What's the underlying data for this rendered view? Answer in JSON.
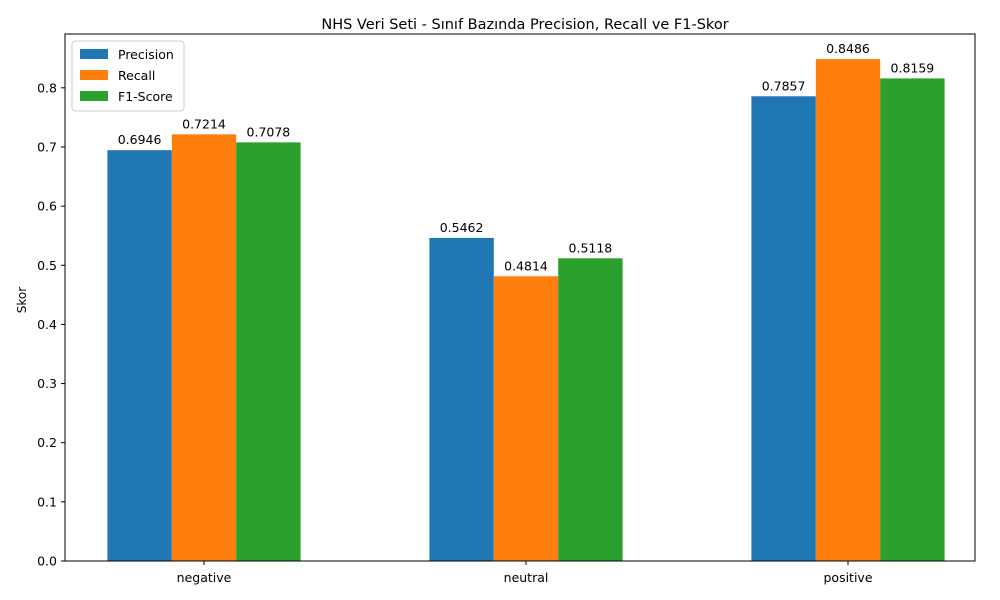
{
  "chart_data": {
    "type": "bar",
    "title": "NHS Veri Seti - Sınıf Bazında Precision, Recall ve F1-Skor",
    "xlabel": "",
    "ylabel": "Skor",
    "categories": [
      "negative",
      "neutral",
      "positive"
    ],
    "series": [
      {
        "name": "Precision",
        "color": "#1f77b4",
        "values": [
          0.6946,
          0.5462,
          0.7857
        ],
        "labels": [
          "0.6946",
          "0.5462",
          "0.7857"
        ]
      },
      {
        "name": "Recall",
        "color": "#ff7f0e",
        "values": [
          0.7214,
          0.4814,
          0.8486
        ],
        "labels": [
          "0.7214",
          "0.4814",
          "0.8486"
        ]
      },
      {
        "name": "F1-Score",
        "color": "#2ca02c",
        "values": [
          0.7078,
          0.5118,
          0.8159
        ],
        "labels": [
          "0.7078",
          "0.5118",
          "0.8159"
        ]
      }
    ],
    "ylim": [
      0,
      0.891
    ],
    "yticks": [
      "0.0",
      "0.1",
      "0.2",
      "0.3",
      "0.4",
      "0.5",
      "0.6",
      "0.7",
      "0.8"
    ],
    "grid": false,
    "legend_position": "top-left"
  }
}
